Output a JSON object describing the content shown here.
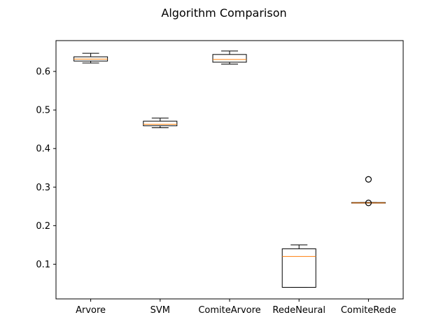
{
  "chart_data": {
    "type": "box",
    "title": "Algorithm Comparison",
    "xlabel": "",
    "ylabel": "",
    "ylim": [
      0.01,
      0.68
    ],
    "yticks": [
      0.1,
      0.2,
      0.3,
      0.4,
      0.5,
      0.6
    ],
    "ytick_labels": [
      "0.1",
      "0.2",
      "0.3",
      "0.4",
      "0.5",
      "0.6"
    ],
    "grid": false,
    "colors": {
      "box": "#000000",
      "median": "#ff7f0e",
      "flier": "#000000"
    },
    "categories": [
      "Arvore",
      "SVM",
      "ComiteArvore",
      "RedeNeural",
      "ComiteRede"
    ],
    "boxes": [
      {
        "category": "Arvore",
        "whisker_low": 0.622,
        "q1": 0.627,
        "median": 0.632,
        "q3": 0.638,
        "whisker_high": 0.647,
        "fliers": []
      },
      {
        "category": "SVM",
        "whisker_low": 0.454,
        "q1": 0.459,
        "median": 0.463,
        "q3": 0.471,
        "whisker_high": 0.479,
        "fliers": []
      },
      {
        "category": "ComiteArvore",
        "whisker_low": 0.619,
        "q1": 0.624,
        "median": 0.631,
        "q3": 0.644,
        "whisker_high": 0.653,
        "fliers": []
      },
      {
        "category": "RedeNeural",
        "whisker_low": 0.04,
        "q1": 0.04,
        "median": 0.12,
        "q3": 0.14,
        "whisker_high": 0.15,
        "fliers": []
      },
      {
        "category": "ComiteRede",
        "whisker_low": 0.259,
        "q1": 0.259,
        "median": 0.259,
        "q3": 0.26,
        "whisker_high": 0.26,
        "fliers": [
          0.32,
          0.259
        ]
      }
    ]
  }
}
